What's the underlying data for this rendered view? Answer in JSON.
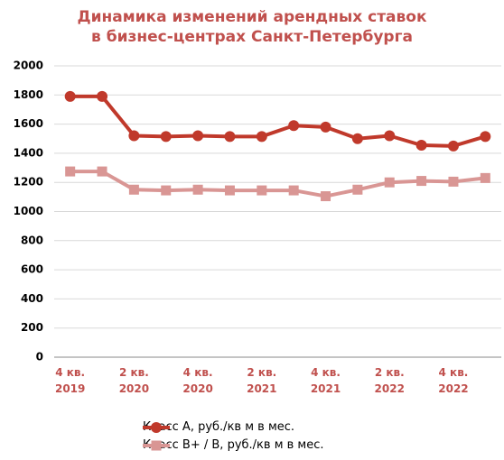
{
  "chart_data": {
    "type": "line",
    "title": "Динамика изменений арендных ставок\nв бизнес-центрах Санкт-Петербурга",
    "categories": [
      "4 кв.\n2019",
      null,
      "2 кв.\n2020",
      null,
      "4 кв.\n2020",
      null,
      "2 кв.\n2021",
      null,
      "4 кв.\n2021",
      null,
      "2 кв.\n2022",
      null,
      "4 кв.\n2022",
      null
    ],
    "series": [
      {
        "name": "Класс А, руб./кв м в мес.",
        "color": "#c0392b",
        "marker": "circle",
        "values": [
          1790,
          1790,
          1520,
          1515,
          1520,
          1515,
          1515,
          1590,
          1580,
          1500,
          1520,
          1455,
          1450,
          1515
        ]
      },
      {
        "name": "Класс В+ / В, руб./кв м в мес.",
        "color": "#d99694",
        "marker": "square",
        "values": [
          1275,
          1275,
          1150,
          1145,
          1150,
          1145,
          1145,
          1145,
          1105,
          1150,
          1200,
          1210,
          1205,
          1230
        ]
      }
    ],
    "ylim": [
      0,
      2000
    ],
    "yticks": [
      0,
      200,
      400,
      600,
      800,
      1000,
      1200,
      1400,
      1600,
      1800,
      2000
    ],
    "grid": true,
    "legend": "bottom"
  }
}
